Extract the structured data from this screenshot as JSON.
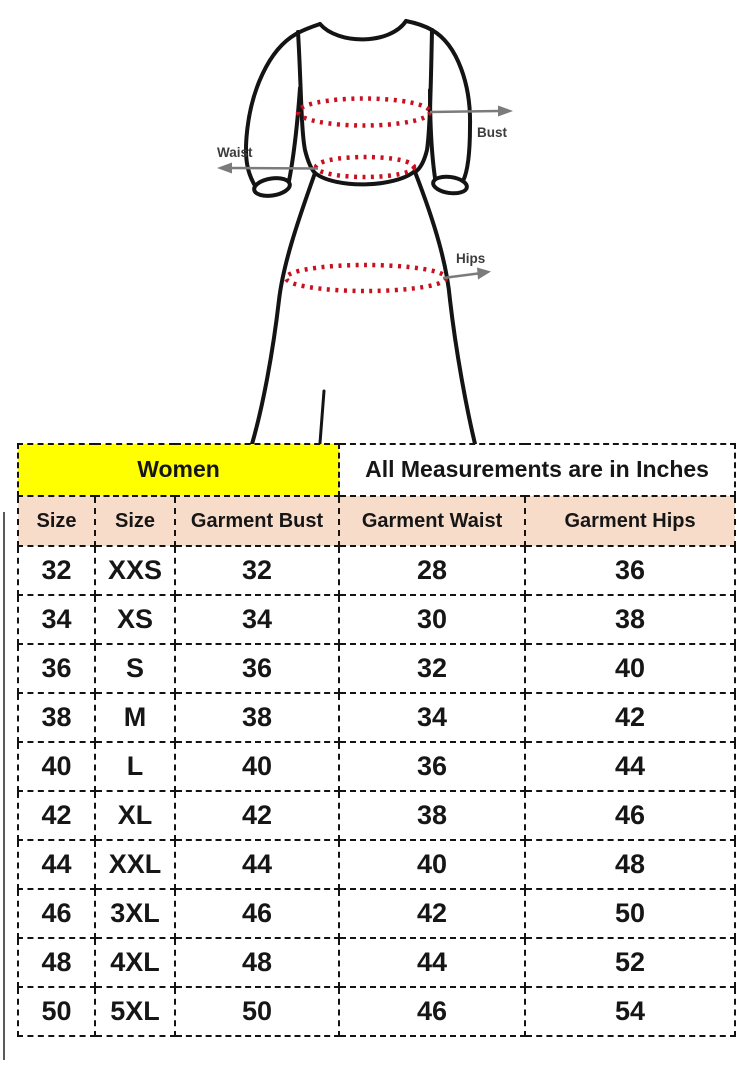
{
  "diagram": {
    "bust_label": "Bust",
    "waist_label": "Waist",
    "hips_label": "Hips"
  },
  "table": {
    "group_headers": {
      "women": "Women",
      "measurements": "All Measurements are in Inches"
    },
    "columns": [
      "Size",
      "Size",
      "Garment Bust",
      "Garment Waist",
      "Garment Hips"
    ],
    "rows": [
      [
        "32",
        "XXS",
        "32",
        "28",
        "36"
      ],
      [
        "34",
        "XS",
        "34",
        "30",
        "38"
      ],
      [
        "36",
        "S",
        "36",
        "32",
        "40"
      ],
      [
        "38",
        "M",
        "38",
        "34",
        "42"
      ],
      [
        "40",
        "L",
        "40",
        "36",
        "44"
      ],
      [
        "42",
        "XL",
        "42",
        "38",
        "46"
      ],
      [
        "44",
        "XXL",
        "44",
        "40",
        "48"
      ],
      [
        "46",
        "3XL",
        "46",
        "42",
        "50"
      ],
      [
        "48",
        "4XL",
        "48",
        "44",
        "52"
      ],
      [
        "50",
        "5XL",
        "50",
        "46",
        "54"
      ]
    ]
  },
  "colors": {
    "women_header_bg": "#ffff00",
    "column_header_bg": "#f8dcca",
    "table_border": "#131313",
    "measure_dots_red": "#c8101e",
    "arrow_gray": "#7b7b7b",
    "dress_outline": "#141414"
  }
}
